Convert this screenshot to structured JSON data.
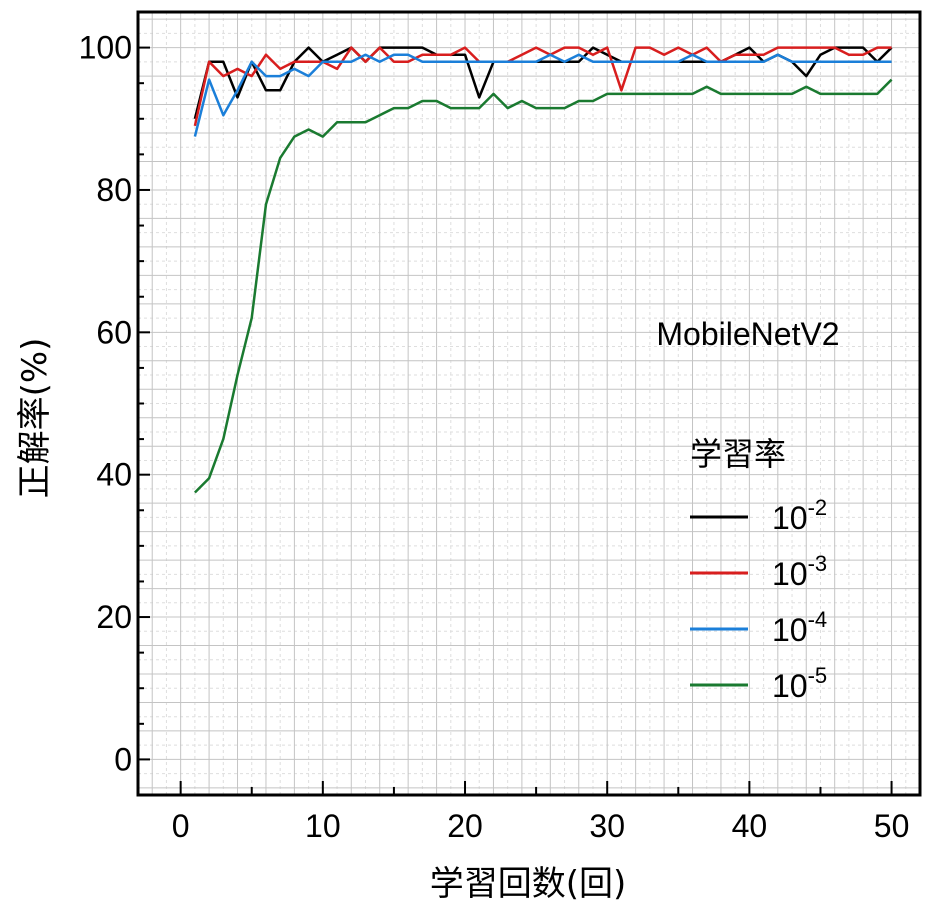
{
  "chart_data": {
    "type": "line",
    "annotation": "MobileNetV2",
    "xlabel": "学習回数(回)",
    "ylabel": "正解率(%)",
    "xlim": [
      -3,
      52
    ],
    "ylim": [
      -5,
      105
    ],
    "xticks": [
      0,
      10,
      20,
      30,
      40,
      50
    ],
    "yticks": [
      0,
      20,
      40,
      60,
      80,
      100
    ],
    "grid": true,
    "legend": {
      "title": "学習率",
      "placement": "right"
    },
    "x": [
      1,
      2,
      3,
      4,
      5,
      6,
      7,
      8,
      9,
      10,
      11,
      12,
      13,
      14,
      15,
      16,
      17,
      18,
      19,
      20,
      21,
      22,
      23,
      24,
      25,
      26,
      27,
      28,
      29,
      30,
      31,
      32,
      33,
      34,
      35,
      36,
      37,
      38,
      39,
      40,
      41,
      42,
      43,
      44,
      45,
      46,
      47,
      48,
      49,
      50
    ],
    "series": [
      {
        "name": "10^-2",
        "base": "10",
        "exponent": "-2",
        "color": "#000000",
        "values": [
          90,
          98,
          98,
          93,
          98,
          94,
          94,
          98,
          100,
          98,
          99,
          100,
          98,
          100,
          100,
          100,
          100,
          99,
          99,
          99,
          93,
          98,
          98,
          98,
          98,
          98,
          98,
          98,
          100,
          99,
          98,
          98,
          98,
          98,
          98,
          98,
          98,
          98,
          99,
          100,
          98,
          99,
          98,
          96,
          99,
          100,
          100,
          100,
          98,
          100
        ]
      },
      {
        "name": "10^-3",
        "base": "10",
        "exponent": "-3",
        "color": "#d81e1e",
        "values": [
          89,
          98,
          96,
          97,
          96,
          99,
          97,
          98,
          98,
          98,
          97,
          100,
          98,
          100,
          98,
          98,
          99,
          99,
          99,
          100,
          98,
          98,
          98,
          99,
          100,
          99,
          100,
          100,
          99,
          100,
          94,
          100,
          100,
          99,
          100,
          99,
          100,
          98,
          99,
          99,
          99,
          100,
          100,
          100,
          100,
          100,
          99,
          99,
          100,
          100
        ]
      },
      {
        "name": "10^-4",
        "base": "10",
        "exponent": "-4",
        "color": "#1b7fd9",
        "values": [
          87.5,
          95.5,
          90.5,
          94,
          98,
          96,
          96,
          97,
          96,
          98,
          98,
          98,
          99,
          98,
          99,
          99,
          98,
          98,
          98,
          98,
          98,
          98,
          98,
          98,
          98,
          99,
          98,
          99,
          98,
          98,
          98,
          98,
          98,
          98,
          98,
          99,
          98,
          98,
          98,
          98,
          98,
          99,
          98,
          98,
          98,
          98,
          98,
          98,
          98,
          98
        ]
      },
      {
        "name": "10^-5",
        "base": "10",
        "exponent": "-5",
        "color": "#1a7a30",
        "values": [
          37.5,
          39.5,
          45,
          54,
          62,
          78,
          84.5,
          87.5,
          88.5,
          87.5,
          89.5,
          89.5,
          89.5,
          90.5,
          91.5,
          91.5,
          92.5,
          92.5,
          91.5,
          91.5,
          91.5,
          93.5,
          91.5,
          92.5,
          91.5,
          91.5,
          91.5,
          92.5,
          92.5,
          93.5,
          93.5,
          93.5,
          93.5,
          93.5,
          93.5,
          93.5,
          94.5,
          93.5,
          93.5,
          93.5,
          93.5,
          93.5,
          93.5,
          94.5,
          93.5,
          93.5,
          93.5,
          93.5,
          93.5,
          95.5
        ]
      }
    ]
  }
}
